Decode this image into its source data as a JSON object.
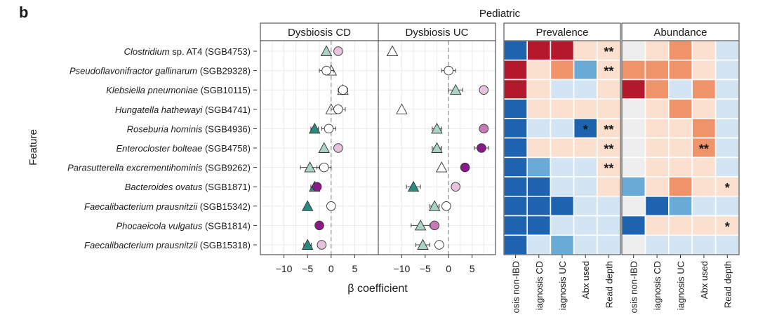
{
  "panel_letter": "b",
  "suptitle": "Pediatric",
  "features": [
    {
      "genus": "Clostridium",
      "rest": " sp. AT4",
      "sgb": " (SGB4753)"
    },
    {
      "genus": "Pseudoflavonifractor gallinarum",
      "rest": "",
      "sgb": " (SGB29328)"
    },
    {
      "genus": "Klebsiella pneumoniae",
      "rest": "",
      "sgb": " (SGB10115)"
    },
    {
      "genus": "Hungatella hathewayi",
      "rest": "",
      "sgb": " (SGB4741)"
    },
    {
      "genus": "Roseburia hominis",
      "rest": "",
      "sgb": " (SGB4936)"
    },
    {
      "genus": "Enterocloster bolteae",
      "rest": "",
      "sgb": " (SGB4758)"
    },
    {
      "genus": "Parasutterella excrementihominis",
      "rest": "",
      "sgb": " (SGB9262)"
    },
    {
      "genus": "Bacteroides ovatus",
      "rest": "",
      "sgb": " (SGB1871)"
    },
    {
      "genus": "Faecalibacterium prausnitzii",
      "rest": "",
      "sgb": " (SGB15342)"
    },
    {
      "genus": "Phocaeicola vulgatus",
      "rest": "",
      "sgb": " (SGB1814)"
    },
    {
      "genus": "Faecalibacterium prausnitzii",
      "rest": "",
      "sgb": " (SGB15318)"
    }
  ],
  "colors": {
    "tri_light": "#a9d3c4",
    "tri_dark": "#2a8a80",
    "tri_white": "#ffffff",
    "circ_light": "#e8c2dc",
    "circ_mid": "#c87ab8",
    "circ_dark": "#8a1a88",
    "circ_white": "#ffffff",
    "navy": "#1d63b0",
    "mid_blue": "#6aaad6",
    "light_blue": "#d3e5f2",
    "pale_orange": "#fbe0cf",
    "orange": "#ef936a",
    "dark_red": "#b3182b",
    "gray": "#eeeeee"
  },
  "chart_data": [
    {
      "type": "scatter",
      "title": "Dysbiosis CD",
      "xlabel": "β coefficient",
      "ylabel": "Feature",
      "xlim": [
        -15,
        10
      ],
      "xticks": [
        -10,
        -5,
        0,
        5
      ],
      "series": [
        {
          "name": "triangle",
          "values": [
            -1,
            0,
            2.5,
            0,
            -3.5,
            -1.5,
            -4.5,
            -3.5,
            -5,
            null,
            -5
          ],
          "err": [
            0,
            0,
            0,
            0,
            0.8,
            0,
            2,
            0.8,
            0,
            0.5,
            0.8
          ],
          "fill": [
            "tri_light",
            "tri_white",
            "tri_white",
            "tri_white",
            "tri_dark",
            "tri_light",
            "tri_light",
            "tri_dark",
            "tri_dark",
            null,
            "tri_dark"
          ]
        },
        {
          "name": "circle",
          "values": [
            1.5,
            -1,
            2.5,
            1.5,
            -0.5,
            1.5,
            -1.5,
            -3,
            0,
            -2.5,
            -2
          ],
          "err": [
            0.5,
            1.5,
            1,
            1.5,
            1.5,
            0,
            1.5,
            0,
            0,
            0.8,
            0
          ],
          "fill": [
            "circ_light",
            "circ_white",
            "circ_white",
            "circ_white",
            "circ_white",
            "circ_light",
            "circ_white",
            "circ_dark",
            "circ_white",
            "circ_dark",
            "circ_light"
          ]
        }
      ]
    },
    {
      "type": "scatter",
      "title": "Dysbiosis UC",
      "xlim": [
        -15,
        10
      ],
      "xticks": [
        -10,
        -5,
        0,
        5
      ],
      "series": [
        {
          "name": "triangle",
          "values": [
            -12,
            null,
            1.5,
            -10,
            -2.5,
            -2.5,
            -1.5,
            -7.5,
            -3,
            -6,
            -5.5
          ],
          "err": [
            0,
            0,
            1.5,
            0,
            1,
            1,
            0,
            1.5,
            1,
            2,
            1.5
          ],
          "fill": [
            "tri_white",
            null,
            "tri_light",
            "tri_white",
            "tri_light",
            "tri_light",
            "tri_white",
            "tri_dark",
            "tri_light",
            "tri_light",
            "tri_light"
          ]
        },
        {
          "name": "circle",
          "values": [
            null,
            0,
            7.5,
            null,
            7.5,
            7,
            3.5,
            1.5,
            -0.5,
            -3,
            -2
          ],
          "err": [
            0,
            1.5,
            0,
            0,
            0.8,
            1.5,
            0.5,
            0,
            0,
            0.8,
            0.8
          ],
          "fill": [
            null,
            "circ_white",
            "circ_light",
            null,
            "circ_mid",
            "circ_dark",
            "circ_dark",
            "circ_light",
            "circ_white",
            "circ_mid",
            "circ_white"
          ]
        }
      ]
    },
    {
      "type": "heatmap",
      "title": "Prevalence",
      "columns": [
        "Diagnosis non-IBD",
        "Diagnosis CD",
        "Diagnosis UC",
        "Abx used",
        "Read depth"
      ],
      "column_labels_visible": [
        "osis non-IBD",
        "iagnosis CD",
        "iagnosis UC",
        "Abx used",
        "Read depth"
      ],
      "cells": [
        [
          "navy",
          "dark_red",
          "dark_red",
          "pale_orange",
          "pale_orange"
        ],
        [
          "dark_red",
          "pale_orange",
          "orange",
          "mid_blue",
          "pale_orange"
        ],
        [
          "dark_red",
          "pale_orange",
          "light_blue",
          "light_blue",
          "pale_orange"
        ],
        [
          "navy",
          "pale_orange",
          "pale_orange",
          "pale_orange",
          "pale_orange"
        ],
        [
          "navy",
          "light_blue",
          "light_blue",
          "navy",
          "pale_orange"
        ],
        [
          "navy",
          "pale_orange",
          "pale_orange",
          "pale_orange",
          "pale_orange"
        ],
        [
          "navy",
          "mid_blue",
          "light_blue",
          "light_blue",
          "pale_orange"
        ],
        [
          "navy",
          "navy",
          "light_blue",
          "light_blue",
          "pale_orange"
        ],
        [
          "navy",
          "navy",
          "navy",
          "light_blue",
          "light_blue"
        ],
        [
          "navy",
          "navy",
          "light_blue",
          "light_blue",
          "light_blue"
        ],
        [
          "navy",
          "light_blue",
          "mid_blue",
          "light_blue",
          "light_blue"
        ]
      ],
      "marks": [
        [
          "",
          "",
          "",
          "",
          "**"
        ],
        [
          "",
          "",
          "",
          "",
          "**"
        ],
        [
          "",
          "",
          "",
          "",
          ""
        ],
        [
          "",
          "",
          "",
          "",
          ""
        ],
        [
          "",
          "",
          "",
          "*",
          "**"
        ],
        [
          "",
          "",
          "",
          "",
          "**"
        ],
        [
          "",
          "",
          "",
          "",
          "**"
        ],
        [
          "",
          "",
          "",
          "",
          ""
        ],
        [
          "",
          "",
          "",
          "",
          ""
        ],
        [
          "",
          "",
          "",
          "",
          ""
        ],
        [
          "",
          "",
          "",
          "",
          ""
        ]
      ]
    },
    {
      "type": "heatmap",
      "title": "Abundance",
      "columns": [
        "Diagnosis non-IBD",
        "Diagnosis CD",
        "Diagnosis UC",
        "Abx used",
        "Read depth"
      ],
      "column_labels_visible": [
        "osis non-IBD",
        "iagnosis CD",
        "iagnosis UC",
        "Abx used",
        "Read depth"
      ],
      "cells": [
        [
          "gray",
          "pale_orange",
          "orange",
          "pale_orange",
          "light_blue"
        ],
        [
          "orange",
          "orange",
          "orange",
          "pale_orange",
          "light_blue"
        ],
        [
          "dark_red",
          "orange",
          "light_blue",
          "orange",
          "light_blue"
        ],
        [
          "gray",
          "pale_orange",
          "orange",
          "pale_orange",
          "light_blue"
        ],
        [
          "gray",
          "pale_orange",
          "pale_orange",
          "orange",
          "light_blue"
        ],
        [
          "gray",
          "pale_orange",
          "pale_orange",
          "orange",
          "light_blue"
        ],
        [
          "gray",
          "pale_orange",
          "pale_orange",
          "pale_orange",
          "light_blue"
        ],
        [
          "mid_blue",
          "pale_orange",
          "orange",
          "pale_orange",
          "pale_orange"
        ],
        [
          "gray",
          "navy",
          "mid_blue",
          "light_blue",
          "light_blue"
        ],
        [
          "navy",
          "pale_orange",
          "pale_orange",
          "pale_orange",
          "pale_orange"
        ],
        [
          "gray",
          "light_blue",
          "light_blue",
          "light_blue",
          "light_blue"
        ]
      ],
      "marks": [
        [
          "",
          "",
          "",
          "",
          ""
        ],
        [
          "",
          "",
          "",
          "",
          ""
        ],
        [
          "",
          "",
          "",
          "",
          ""
        ],
        [
          "",
          "",
          "",
          "",
          ""
        ],
        [
          "",
          "",
          "",
          "",
          ""
        ],
        [
          "",
          "",
          "",
          "**",
          ""
        ],
        [
          "",
          "",
          "",
          "",
          ""
        ],
        [
          "",
          "",
          "",
          "",
          "*"
        ],
        [
          "",
          "",
          "",
          "",
          ""
        ],
        [
          "",
          "",
          "",
          "",
          "*"
        ],
        [
          "",
          "",
          "",
          "",
          ""
        ]
      ]
    }
  ]
}
